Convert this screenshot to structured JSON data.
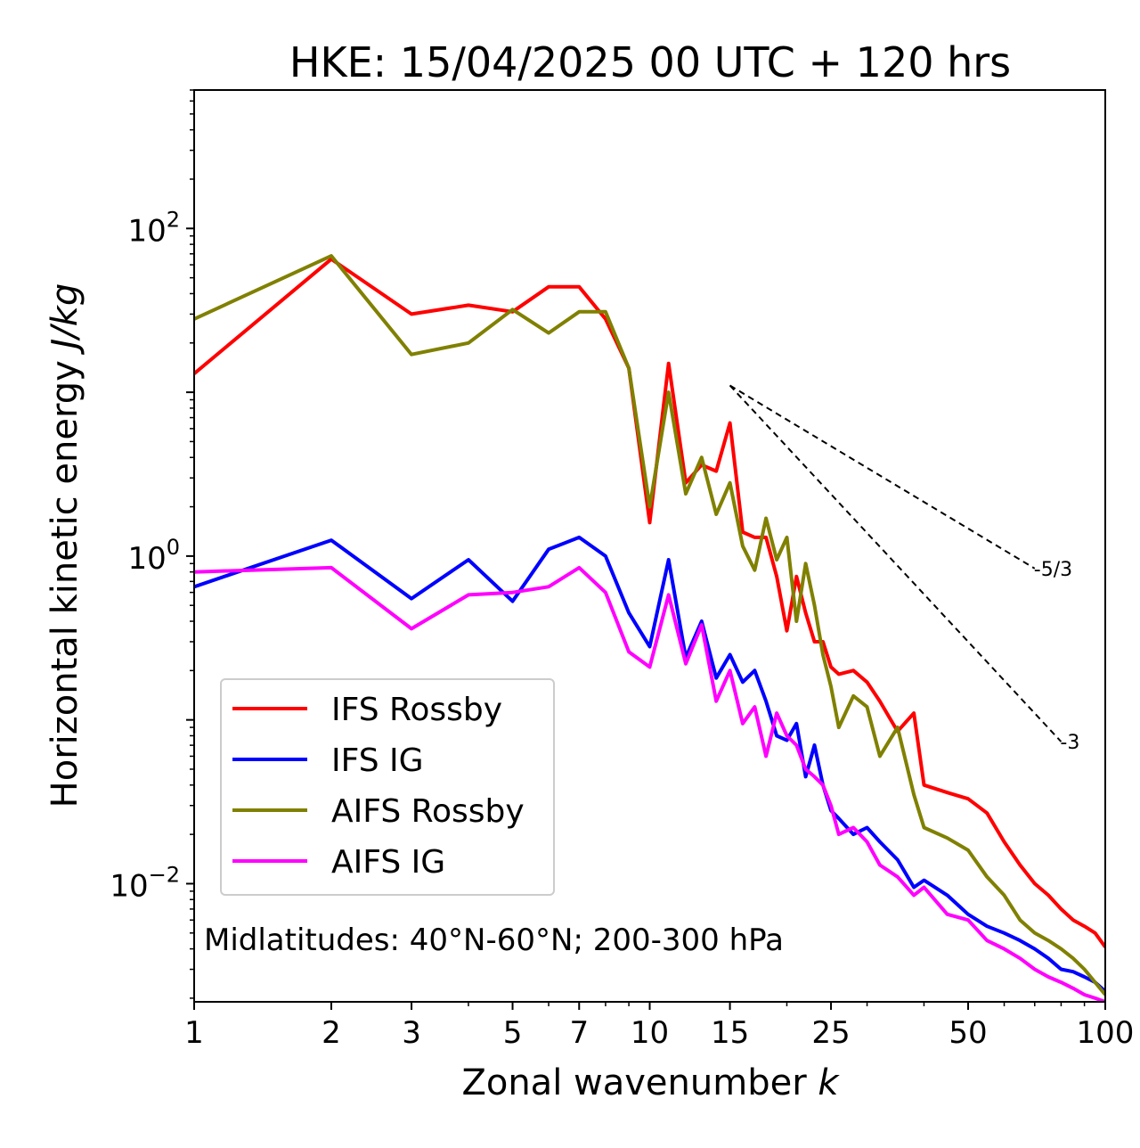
{
  "chart_data": {
    "type": "line",
    "title": "HKE: 15/04/2025 00 UTC + 120 hrs",
    "xlabel": "Zonal wavenumber",
    "xlabel_var": "k",
    "ylabel": "Horizontal kinetic energy",
    "ylabel_unit": "J/kg",
    "x_scale": "log",
    "y_scale": "log",
    "xlim": [
      1,
      100
    ],
    "ylim": [
      0.0019,
      700
    ],
    "x_ticks": [
      1,
      2,
      3,
      5,
      7,
      10,
      15,
      25,
      50,
      100
    ],
    "x_tick_labels": [
      "1",
      "2",
      "3",
      "5",
      "7",
      "10",
      "15",
      "25",
      "50",
      "100"
    ],
    "y_ticks": [
      {
        "value": 0.01,
        "base": "10",
        "exp": "−2"
      },
      {
        "value": 1,
        "base": "10",
        "exp": "0"
      },
      {
        "value": 100,
        "base": "10",
        "exp": "2"
      }
    ],
    "grid": false,
    "legend_position": "lower-left",
    "annotation": "Midlatitudes: 40°N-60°N; 200-300 hPa",
    "reference_lines": [
      {
        "label": "-5/3",
        "x": [
          15,
          70
        ],
        "y": [
          11,
          0.84
        ]
      },
      {
        "label": "-3",
        "x": [
          15,
          80
        ],
        "y": [
          11,
          0.0736
        ]
      }
    ],
    "series": [
      {
        "name": "IFS Rossby",
        "color": "#ff0000",
        "x": [
          1,
          2,
          3,
          4,
          5,
          6,
          7,
          8,
          9,
          10,
          11,
          12,
          13,
          14,
          15,
          16,
          17,
          18,
          19,
          20,
          21,
          22,
          23,
          24,
          25,
          26,
          28,
          30,
          32,
          35,
          38,
          40,
          45,
          50,
          55,
          60,
          65,
          70,
          75,
          80,
          85,
          90,
          95,
          100
        ],
        "y": [
          13,
          65,
          30,
          34,
          31,
          44,
          44,
          28,
          14,
          1.6,
          15,
          2.8,
          3.6,
          3.3,
          6.5,
          1.4,
          1.3,
          1.3,
          0.75,
          0.35,
          0.75,
          0.45,
          0.3,
          0.3,
          0.21,
          0.19,
          0.2,
          0.17,
          0.13,
          0.085,
          0.11,
          0.04,
          0.036,
          0.033,
          0.027,
          0.018,
          0.013,
          0.01,
          0.0085,
          0.007,
          0.006,
          0.0055,
          0.005,
          0.0041
        ]
      },
      {
        "name": "IFS IG",
        "color": "#0000ff",
        "x": [
          1,
          2,
          3,
          4,
          5,
          6,
          7,
          8,
          9,
          10,
          11,
          12,
          13,
          14,
          15,
          16,
          17,
          18,
          19,
          20,
          21,
          22,
          23,
          24,
          25,
          26,
          28,
          30,
          32,
          35,
          38,
          40,
          45,
          50,
          55,
          60,
          65,
          70,
          75,
          80,
          85,
          90,
          95,
          100
        ],
        "y": [
          0.65,
          1.25,
          0.55,
          0.95,
          0.53,
          1.1,
          1.3,
          1.0,
          0.45,
          0.28,
          0.95,
          0.24,
          0.4,
          0.18,
          0.25,
          0.17,
          0.2,
          0.13,
          0.08,
          0.075,
          0.095,
          0.045,
          0.07,
          0.04,
          0.028,
          0.025,
          0.02,
          0.022,
          0.018,
          0.014,
          0.0095,
          0.0105,
          0.0085,
          0.0065,
          0.0055,
          0.005,
          0.0045,
          0.004,
          0.0035,
          0.003,
          0.0029,
          0.0027,
          0.0025,
          0.0022
        ]
      },
      {
        "name": "AIFS Rossby",
        "color": "#808000",
        "x": [
          1,
          2,
          3,
          4,
          5,
          6,
          7,
          8,
          9,
          10,
          11,
          12,
          13,
          14,
          15,
          16,
          17,
          18,
          19,
          20,
          21,
          22,
          23,
          24,
          25,
          26,
          28,
          30,
          32,
          35,
          38,
          40,
          45,
          50,
          55,
          60,
          65,
          70,
          75,
          80,
          85,
          90,
          95,
          100
        ],
        "y": [
          28,
          68,
          17,
          20,
          32,
          23,
          31,
          31,
          14,
          2.0,
          10,
          2.4,
          4.0,
          1.8,
          2.8,
          1.15,
          0.82,
          1.7,
          0.95,
          1.3,
          0.4,
          0.9,
          0.5,
          0.25,
          0.16,
          0.09,
          0.14,
          0.12,
          0.06,
          0.09,
          0.035,
          0.022,
          0.019,
          0.016,
          0.011,
          0.0085,
          0.006,
          0.005,
          0.0045,
          0.004,
          0.0035,
          0.003,
          0.0025,
          0.0021
        ]
      },
      {
        "name": "AIFS IG",
        "color": "#ff00ff",
        "x": [
          1,
          2,
          3,
          4,
          5,
          6,
          7,
          8,
          9,
          10,
          11,
          12,
          13,
          14,
          15,
          16,
          17,
          18,
          19,
          20,
          21,
          22,
          23,
          24,
          25,
          26,
          28,
          30,
          32,
          35,
          38,
          40,
          45,
          50,
          55,
          60,
          65,
          70,
          75,
          80,
          85,
          90,
          95,
          100
        ],
        "y": [
          0.8,
          0.85,
          0.36,
          0.58,
          0.6,
          0.65,
          0.85,
          0.6,
          0.26,
          0.21,
          0.58,
          0.22,
          0.38,
          0.13,
          0.2,
          0.095,
          0.12,
          0.06,
          0.11,
          0.08,
          0.07,
          0.05,
          0.045,
          0.04,
          0.03,
          0.02,
          0.022,
          0.018,
          0.013,
          0.011,
          0.0085,
          0.0095,
          0.0065,
          0.006,
          0.0045,
          0.004,
          0.0035,
          0.003,
          0.0027,
          0.0025,
          0.0023,
          0.0021,
          0.002,
          0.0019
        ]
      }
    ]
  }
}
